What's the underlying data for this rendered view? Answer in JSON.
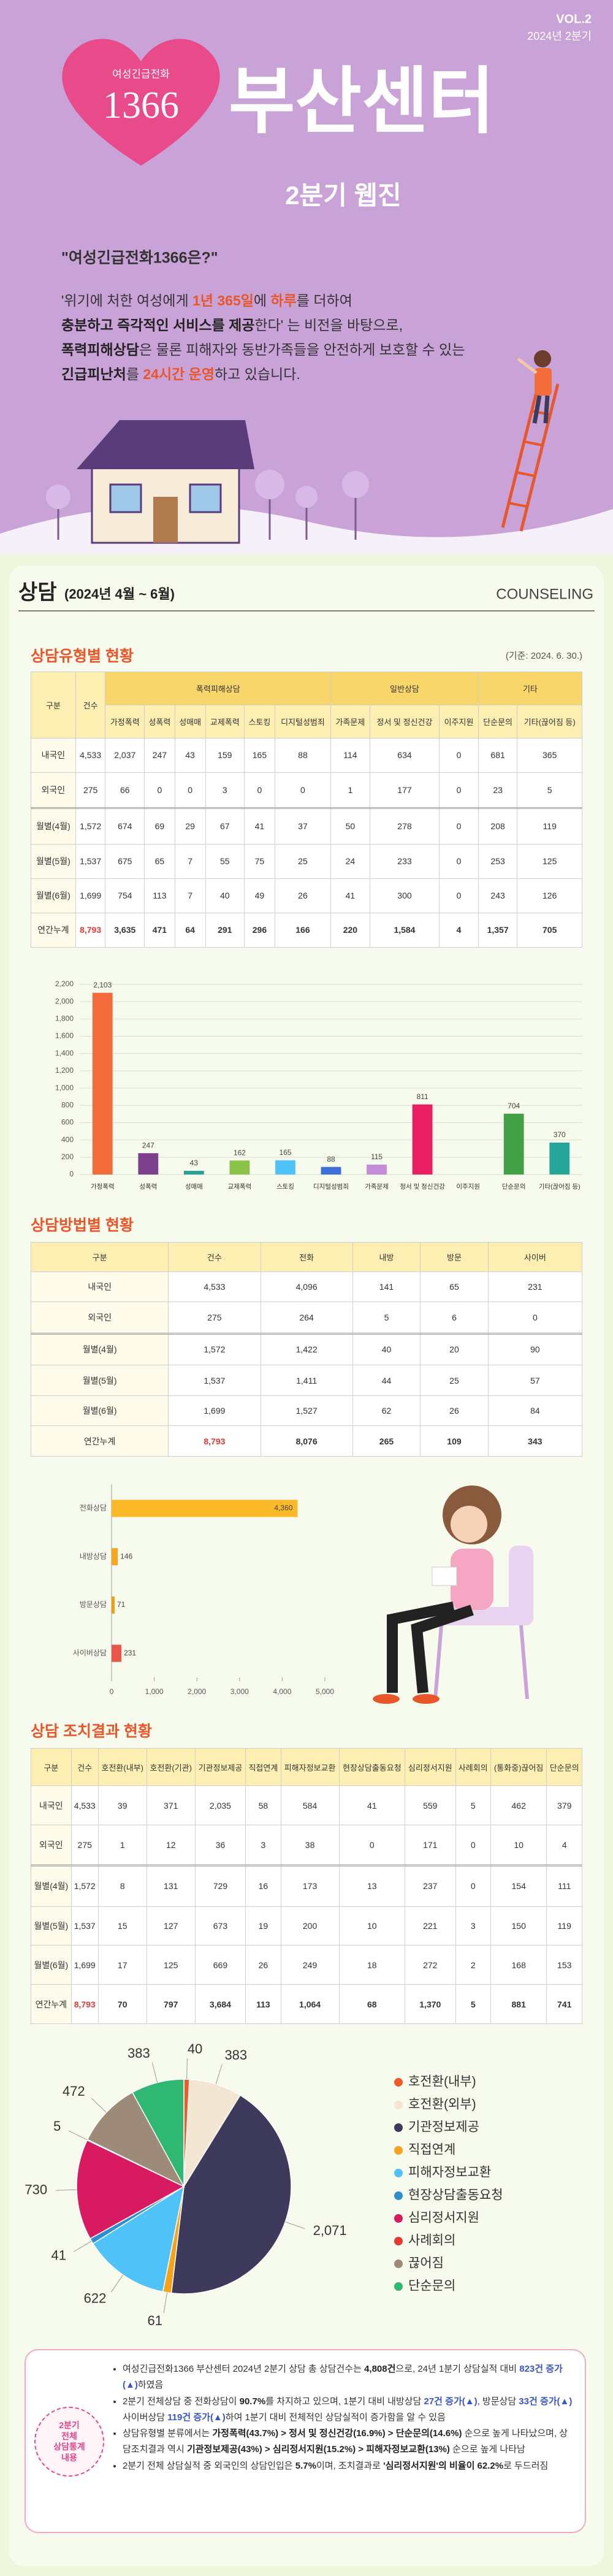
{
  "header": {
    "vol": "VOL.2",
    "period": "2024년 2분기",
    "logo_top": "여성긴급전화",
    "logo_number": "1366",
    "title": "부산센터",
    "subtitle": "2분기 웹진"
  },
  "intro": {
    "question": "\"여성긴급전화1366은?\"",
    "lines": [
      [
        "'위기에 처한 여성에게 ",
        "1년 365일",
        "에 ",
        "하루",
        "를 더하여"
      ],
      [
        "충분하고 즉각적인 서비스를 제공",
        "한다' 는 비전을 바탕으로,"
      ],
      [
        "폭력피해상담",
        "은 물론 피해자와 동반가족들을 안전하게 보호할 수 있는"
      ],
      [
        "긴급피난처",
        "를 ",
        "24시간 운영",
        "하고 있습니다."
      ]
    ]
  },
  "section": {
    "title": "상담",
    "period": "(2024년 4월 ~ 6월)",
    "english": "COUNSELING"
  },
  "type_table": {
    "title": "상담유형별 현황",
    "note": "(기준: 2024. 6. 30.)",
    "head": [
      "구분",
      "건수"
    ],
    "groups": [
      {
        "label": "폭력피해상담",
        "columns": [
          "가정폭력",
          "성폭력",
          "성매매",
          "교제폭력",
          "스토킹",
          "디지털성범죄"
        ]
      },
      {
        "label": "일반상담",
        "columns": [
          "가족문제",
          "정서 및 정신건강",
          "이주지원"
        ]
      },
      {
        "label": "기타",
        "columns": [
          "단순문의",
          "기타(끊어짐 등)"
        ]
      }
    ],
    "rows": [
      [
        "내국인",
        "4,533",
        "2,037",
        "247",
        "43",
        "159",
        "165",
        "88",
        "114",
        "634",
        "0",
        "681",
        "365"
      ],
      [
        "외국인",
        "275",
        "66",
        "0",
        "0",
        "3",
        "0",
        "0",
        "1",
        "177",
        "0",
        "23",
        "5"
      ],
      [
        "월별(4월)",
        "1,572",
        "674",
        "69",
        "29",
        "67",
        "41",
        "37",
        "50",
        "278",
        "0",
        "208",
        "119"
      ],
      [
        "월별(5월)",
        "1,537",
        "675",
        "65",
        "7",
        "55",
        "75",
        "25",
        "24",
        "233",
        "0",
        "253",
        "125"
      ],
      [
        "월별(6월)",
        "1,699",
        "754",
        "113",
        "7",
        "40",
        "49",
        "26",
        "41",
        "300",
        "0",
        "243",
        "126"
      ],
      [
        "연간누계",
        "8,793",
        "3,635",
        "471",
        "64",
        "291",
        "296",
        "166",
        "220",
        "1,584",
        "4",
        "1,357",
        "705"
      ]
    ]
  },
  "method_table": {
    "title": "상담방법별 현황",
    "columns": [
      "구분",
      "건수",
      "전화",
      "내방",
      "방문",
      "사이버"
    ],
    "rows": [
      [
        "내국인",
        "4,533",
        "4,096",
        "141",
        "65",
        "231"
      ],
      [
        "외국인",
        "275",
        "264",
        "5",
        "6",
        "0"
      ],
      [
        "월별(4월)",
        "1,572",
        "1,422",
        "40",
        "20",
        "90"
      ],
      [
        "월별(5월)",
        "1,537",
        "1,411",
        "44",
        "25",
        "57"
      ],
      [
        "월별(6월)",
        "1,699",
        "1,527",
        "62",
        "26",
        "84"
      ],
      [
        "연간누계",
        "8,793",
        "8,076",
        "265",
        "109",
        "343"
      ]
    ]
  },
  "action_table": {
    "title": "상담 조치결과 현황",
    "columns": [
      "구분",
      "건수",
      "호전환(내부)",
      "호전환(기관)",
      "기관정보제공",
      "직접연계",
      "피해자정보교환",
      "현장상담출동요청",
      "심리정서지원",
      "사례회의",
      "(통화중)끊어짐",
      "단순문의"
    ],
    "rows": [
      [
        "내국인",
        "4,533",
        "39",
        "371",
        "2,035",
        "58",
        "584",
        "41",
        "559",
        "5",
        "462",
        "379"
      ],
      [
        "외국인",
        "275",
        "1",
        "12",
        "36",
        "3",
        "38",
        "0",
        "171",
        "0",
        "10",
        "4"
      ],
      [
        "월별(4월)",
        "1,572",
        "8",
        "131",
        "729",
        "16",
        "173",
        "13",
        "237",
        "0",
        "154",
        "111"
      ],
      [
        "월별(5월)",
        "1,537",
        "15",
        "127",
        "673",
        "19",
        "200",
        "10",
        "221",
        "3",
        "150",
        "119"
      ],
      [
        "월별(6월)",
        "1,699",
        "17",
        "125",
        "669",
        "26",
        "249",
        "18",
        "272",
        "2",
        "168",
        "153"
      ],
      [
        "연간누계",
        "8,793",
        "70",
        "797",
        "3,684",
        "113",
        "1,064",
        "68",
        "1,370",
        "5",
        "881",
        "741"
      ]
    ]
  },
  "chart_data": [
    {
      "type": "bar",
      "categories": [
        "가정폭력",
        "성폭력",
        "성매매",
        "교제폭력",
        "스토킹",
        "디지털성범죄",
        "가족문제",
        "정서 및 정신건강",
        "이주지원",
        "단순문의",
        "기타(끊어짐 등)"
      ],
      "values": [
        2103,
        247,
        43,
        162,
        165,
        88,
        115,
        811,
        0,
        704,
        370
      ],
      "value_labels": [
        "2,103",
        "247",
        "43",
        "162",
        "165",
        "88",
        "115",
        "811",
        null,
        "704",
        "370"
      ],
      "colors": [
        "#f26c3c",
        "#7b3f8c",
        "#2aa198",
        "#8bc34a",
        "#4fc3f7",
        "#3f6fd8",
        "#c48bd8",
        "#e91e63",
        "#bdbdbd",
        "#43a047",
        "#26a69a"
      ],
      "ylim": [
        0,
        2200
      ],
      "yticks": [
        0,
        200,
        400,
        600,
        800,
        {
          "value": 1000,
          "label": "1,000"
        },
        {
          "value": 1200,
          "label": "1,200"
        },
        {
          "value": 1400,
          "label": "1,400"
        },
        {
          "value": 1600,
          "label": "1,600"
        },
        {
          "value": 1800,
          "label": "1,800"
        },
        {
          "value": 2000,
          "label": "2,000"
        },
        {
          "value": 2200,
          "label": "2,200"
        }
      ],
      "grid": true
    },
    {
      "type": "hbar",
      "categories": [
        "전화상담",
        "내방상담",
        "방문상담",
        "사이버상담"
      ],
      "values": [
        4360,
        146,
        71,
        231
      ],
      "value_labels": [
        "4,360",
        "146",
        "71",
        "231"
      ],
      "colors": [
        "#fbb829",
        "#f5a623",
        "#f39c12",
        "#e8574a"
      ],
      "xlim": [
        0,
        5000
      ],
      "xticks": [
        0,
        {
          "value": 1000,
          "label": "1,000"
        },
        {
          "value": 2000,
          "label": "2,000"
        },
        {
          "value": 3000,
          "label": "3,000"
        },
        {
          "value": 4000,
          "label": "4,000"
        },
        {
          "value": 5000,
          "label": "5,000"
        }
      ]
    },
    {
      "type": "pie",
      "categories": [
        "호전환(내부)",
        "호전환(외부)",
        "기관정보제공",
        "직접연계",
        "피해자정보교환",
        "현장상담출동요청",
        "심리정서지원",
        "사례회의",
        "끊어짐",
        "단순문의"
      ],
      "values": [
        40,
        383,
        2071,
        61,
        622,
        41,
        730,
        5,
        472,
        383
      ],
      "value_labels": [
        "40",
        "383",
        "2,071",
        "61",
        "622",
        "41",
        "730",
        "5",
        "472",
        "383"
      ],
      "colors": [
        "#f05a28",
        "#f3e7d3",
        "#3d3a5c",
        "#f7a21b",
        "#4fc3f7",
        "#2e8fd0",
        "#d81b60",
        "#e53935",
        "#9e8a78",
        "#2eb872"
      ]
    }
  ],
  "summary": {
    "badge": [
      "2분기",
      "전체",
      "상담통계",
      "내용"
    ],
    "items": [
      [
        "여성긴급전화1366 부산센터 2024년 2분기 상담 총 상담건수는 ",
        "4,808건",
        "으로, 24년 1분기 상담실적 대비 ",
        "823건 증가(▲)",
        "하였음"
      ],
      [
        "2분기 전체상담 중 전화상담이 ",
        "90.7%",
        "를 차지하고 있으며, 1분기 대비 내방상담 ",
        "27건 증가(▲)",
        ", 방문상담 ",
        "33건 증가(▲)",
        " 사이버상담 ",
        "119건 증가(▲)",
        "하여 1분기 대비 전체적인 상담실적이 증가함을 알 수 있음"
      ],
      [
        "상담유형별 분류에서는 ",
        "가정폭력(43.7%) > 정서 및 정신건강(16.9%) > 단순문의(14.6%)",
        " 순으로 높게 나타났으며, 상담조치결과 역시 ",
        "기관정보제공(43%) > 심리정서지원(15.2%) > 피해자정보교환(13%)",
        " 순으로 높게 나타남"
      ],
      [
        "2분기 전체 상담실적 중 외국인의 상담인입은 ",
        "5.7%",
        "이며, 조치결과로 ",
        "'심리정서지원'의 비율이 62.2%",
        "로 두드러짐"
      ]
    ]
  }
}
